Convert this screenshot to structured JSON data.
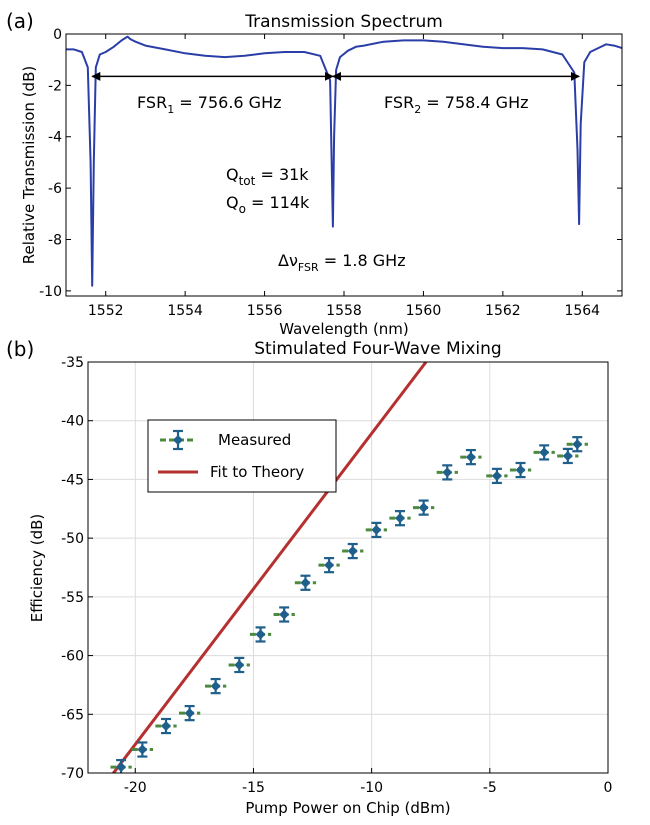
{
  "chart_data": [
    {
      "type": "line",
      "panel_label": "(a)",
      "title": "Transmission Spectrum",
      "xlabel": "Wavelength (nm)",
      "ylabel": "Relative Transmission (dB)",
      "xlim": [
        1551,
        1565
      ],
      "ylim": [
        -10.2,
        0
      ],
      "xticks": [
        1552,
        1554,
        1556,
        1558,
        1560,
        1562,
        1564
      ],
      "yticks": [
        0,
        -2,
        -4,
        -6,
        -8,
        -10
      ],
      "grid": false,
      "series": [
        {
          "color": "#2b3ea8",
          "x": [
            1551.0,
            1551.2,
            1551.4,
            1551.55,
            1551.62,
            1551.66,
            1551.7,
            1551.75,
            1551.85,
            1552.0,
            1552.2,
            1552.4,
            1552.55,
            1552.62,
            1552.75,
            1553.0,
            1553.5,
            1554.0,
            1554.5,
            1555.0,
            1555.5,
            1556.0,
            1556.5,
            1557.0,
            1557.4,
            1557.65,
            1557.72,
            1557.75,
            1557.8,
            1557.9,
            1558.1,
            1558.3,
            1558.5,
            1559.0,
            1559.5,
            1560.0,
            1560.5,
            1561.0,
            1561.5,
            1562.0,
            1562.5,
            1563.0,
            1563.5,
            1563.8,
            1563.88,
            1563.92,
            1563.96,
            1564.05,
            1564.2,
            1564.4,
            1564.6,
            1564.8,
            1565.0
          ],
          "y": [
            -0.6,
            -0.6,
            -0.7,
            -1.3,
            -5.0,
            -9.8,
            -5.0,
            -1.3,
            -0.8,
            -0.7,
            -0.5,
            -0.25,
            -0.1,
            -0.2,
            -0.3,
            -0.45,
            -0.6,
            -0.75,
            -0.85,
            -0.9,
            -0.85,
            -0.75,
            -0.7,
            -0.7,
            -0.85,
            -1.8,
            -7.5,
            -4.0,
            -1.4,
            -0.9,
            -0.65,
            -0.5,
            -0.45,
            -0.3,
            -0.25,
            -0.25,
            -0.3,
            -0.4,
            -0.5,
            -0.55,
            -0.55,
            -0.6,
            -0.8,
            -1.5,
            -4.5,
            -7.4,
            -3.5,
            -1.1,
            -0.7,
            -0.55,
            -0.4,
            -0.45,
            -0.55
          ]
        }
      ],
      "annotations": {
        "fsr1": {
          "base": "FSR",
          "sub": "1",
          "rest": " = 756.6 GHz",
          "x0": 1551.66,
          "x1": 1557.72,
          "y": -1.65
        },
        "fsr2": {
          "base": "FSR",
          "sub": "2",
          "rest": " = 758.4 GHz",
          "x0": 1557.72,
          "x1": 1563.92,
          "y": -1.65
        },
        "qtot": {
          "base": "Q",
          "sub": "tot",
          "rest": " =  31k"
        },
        "qo": {
          "base": "Q",
          "sub": "o",
          "rest": "  =  114k"
        },
        "dnu": {
          "base": "Δν",
          "sub": "FSR",
          "rest": " = 1.8 GHz"
        }
      }
    },
    {
      "type": "scatter",
      "panel_label": "(b)",
      "title": "Stimulated Four-Wave Mixing",
      "xlabel": "Pump Power on Chip (dBm)",
      "ylabel": "Efficiency (dB)",
      "xlim": [
        -22,
        0
      ],
      "ylim": [
        -70,
        -35
      ],
      "xticks": [
        -20,
        -15,
        -10,
        -5,
        0
      ],
      "yticks": [
        -35,
        -40,
        -45,
        -50,
        -55,
        -60,
        -65,
        -70
      ],
      "grid": true,
      "legend_position": "top-left",
      "series": [
        {
          "name": "Measured",
          "marker_color": "#1f5f8b",
          "xerr_color": "#4e8a3e",
          "yerr_color": "#1f5f8b",
          "xerr": 0.45,
          "yerr": 0.6,
          "x": [
            -20.6,
            -19.7,
            -18.7,
            -17.7,
            -16.6,
            -15.6,
            -14.7,
            -13.7,
            -12.8,
            -11.8,
            -10.8,
            -9.8,
            -8.8,
            -7.8,
            -6.8,
            -5.8,
            -4.7,
            -3.7,
            -2.7,
            -1.7,
            -1.3
          ],
          "y": [
            -69.5,
            -68.0,
            -66.0,
            -64.9,
            -62.6,
            -60.8,
            -58.2,
            -56.5,
            -53.8,
            -52.3,
            -51.1,
            -49.3,
            -48.3,
            -47.4,
            -44.4,
            -43.1,
            -44.7,
            -44.2,
            -42.7,
            -43.0,
            -42.0
          ]
        },
        {
          "name": "Fit to Theory",
          "color": "#b5302f",
          "x": [
            -21.3,
            -7.7
          ],
          "y": [
            -71.0,
            -35.0
          ]
        }
      ]
    }
  ]
}
